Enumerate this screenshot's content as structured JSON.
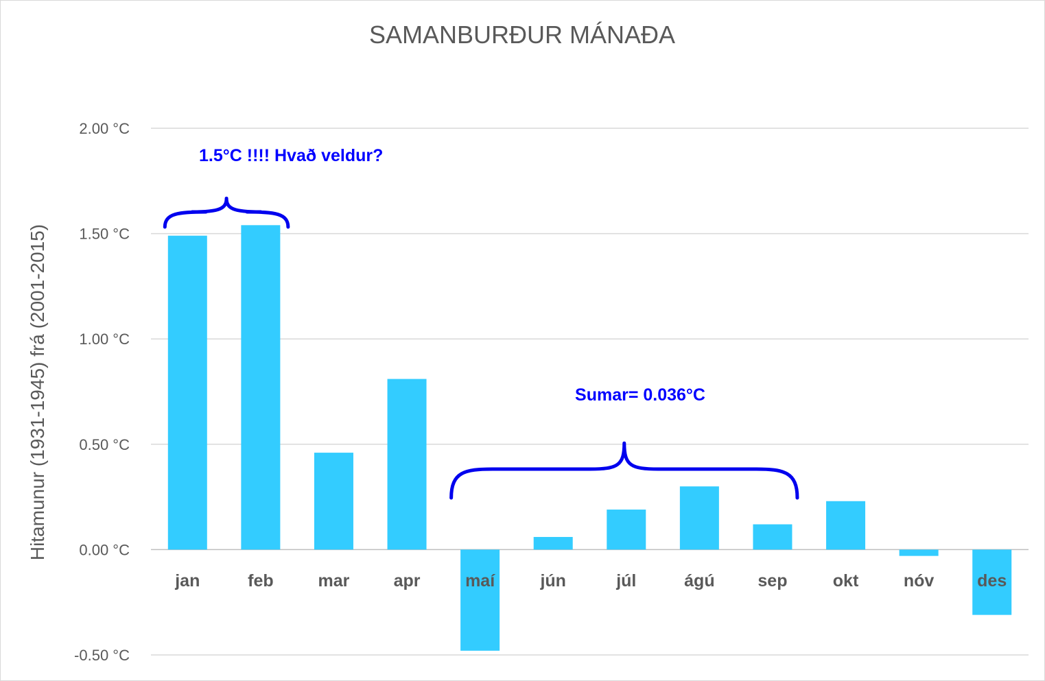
{
  "chart_data": {
    "type": "bar",
    "title": "SAMANBURÐUR MÁNAÐA",
    "xlabel": "",
    "ylabel": "Hitamunur (1931-1945) frá (2001-2015)",
    "categories": [
      "jan",
      "feb",
      "mar",
      "apr",
      "maí",
      "jún",
      "júl",
      "ágú",
      "sep",
      "okt",
      "nóv",
      "des"
    ],
    "values": [
      1.49,
      1.54,
      0.46,
      0.81,
      -0.48,
      0.06,
      0.19,
      0.3,
      0.12,
      0.23,
      -0.03,
      -0.31
    ],
    "ylim": [
      -0.5,
      2.0
    ],
    "yticks": [
      2.0,
      1.5,
      1.0,
      0.5,
      0.0,
      -0.5
    ],
    "ytick_labels": [
      "2.00 °C",
      "1.50 °C",
      "1.00 °C",
      "0.50 °C",
      "0.00 °C",
      "-0.50 °C"
    ],
    "grid": true,
    "bar_color": "#33ccff",
    "annotations": [
      {
        "text": "1.5°C !!!!   Hvað veldur?",
        "brace_from": "jan",
        "brace_to": "feb",
        "color": "#0000ff"
      },
      {
        "text": "Sumar= 0.036°C",
        "brace_from": "maí",
        "brace_to": "sep",
        "color": "#0000ff"
      }
    ]
  }
}
